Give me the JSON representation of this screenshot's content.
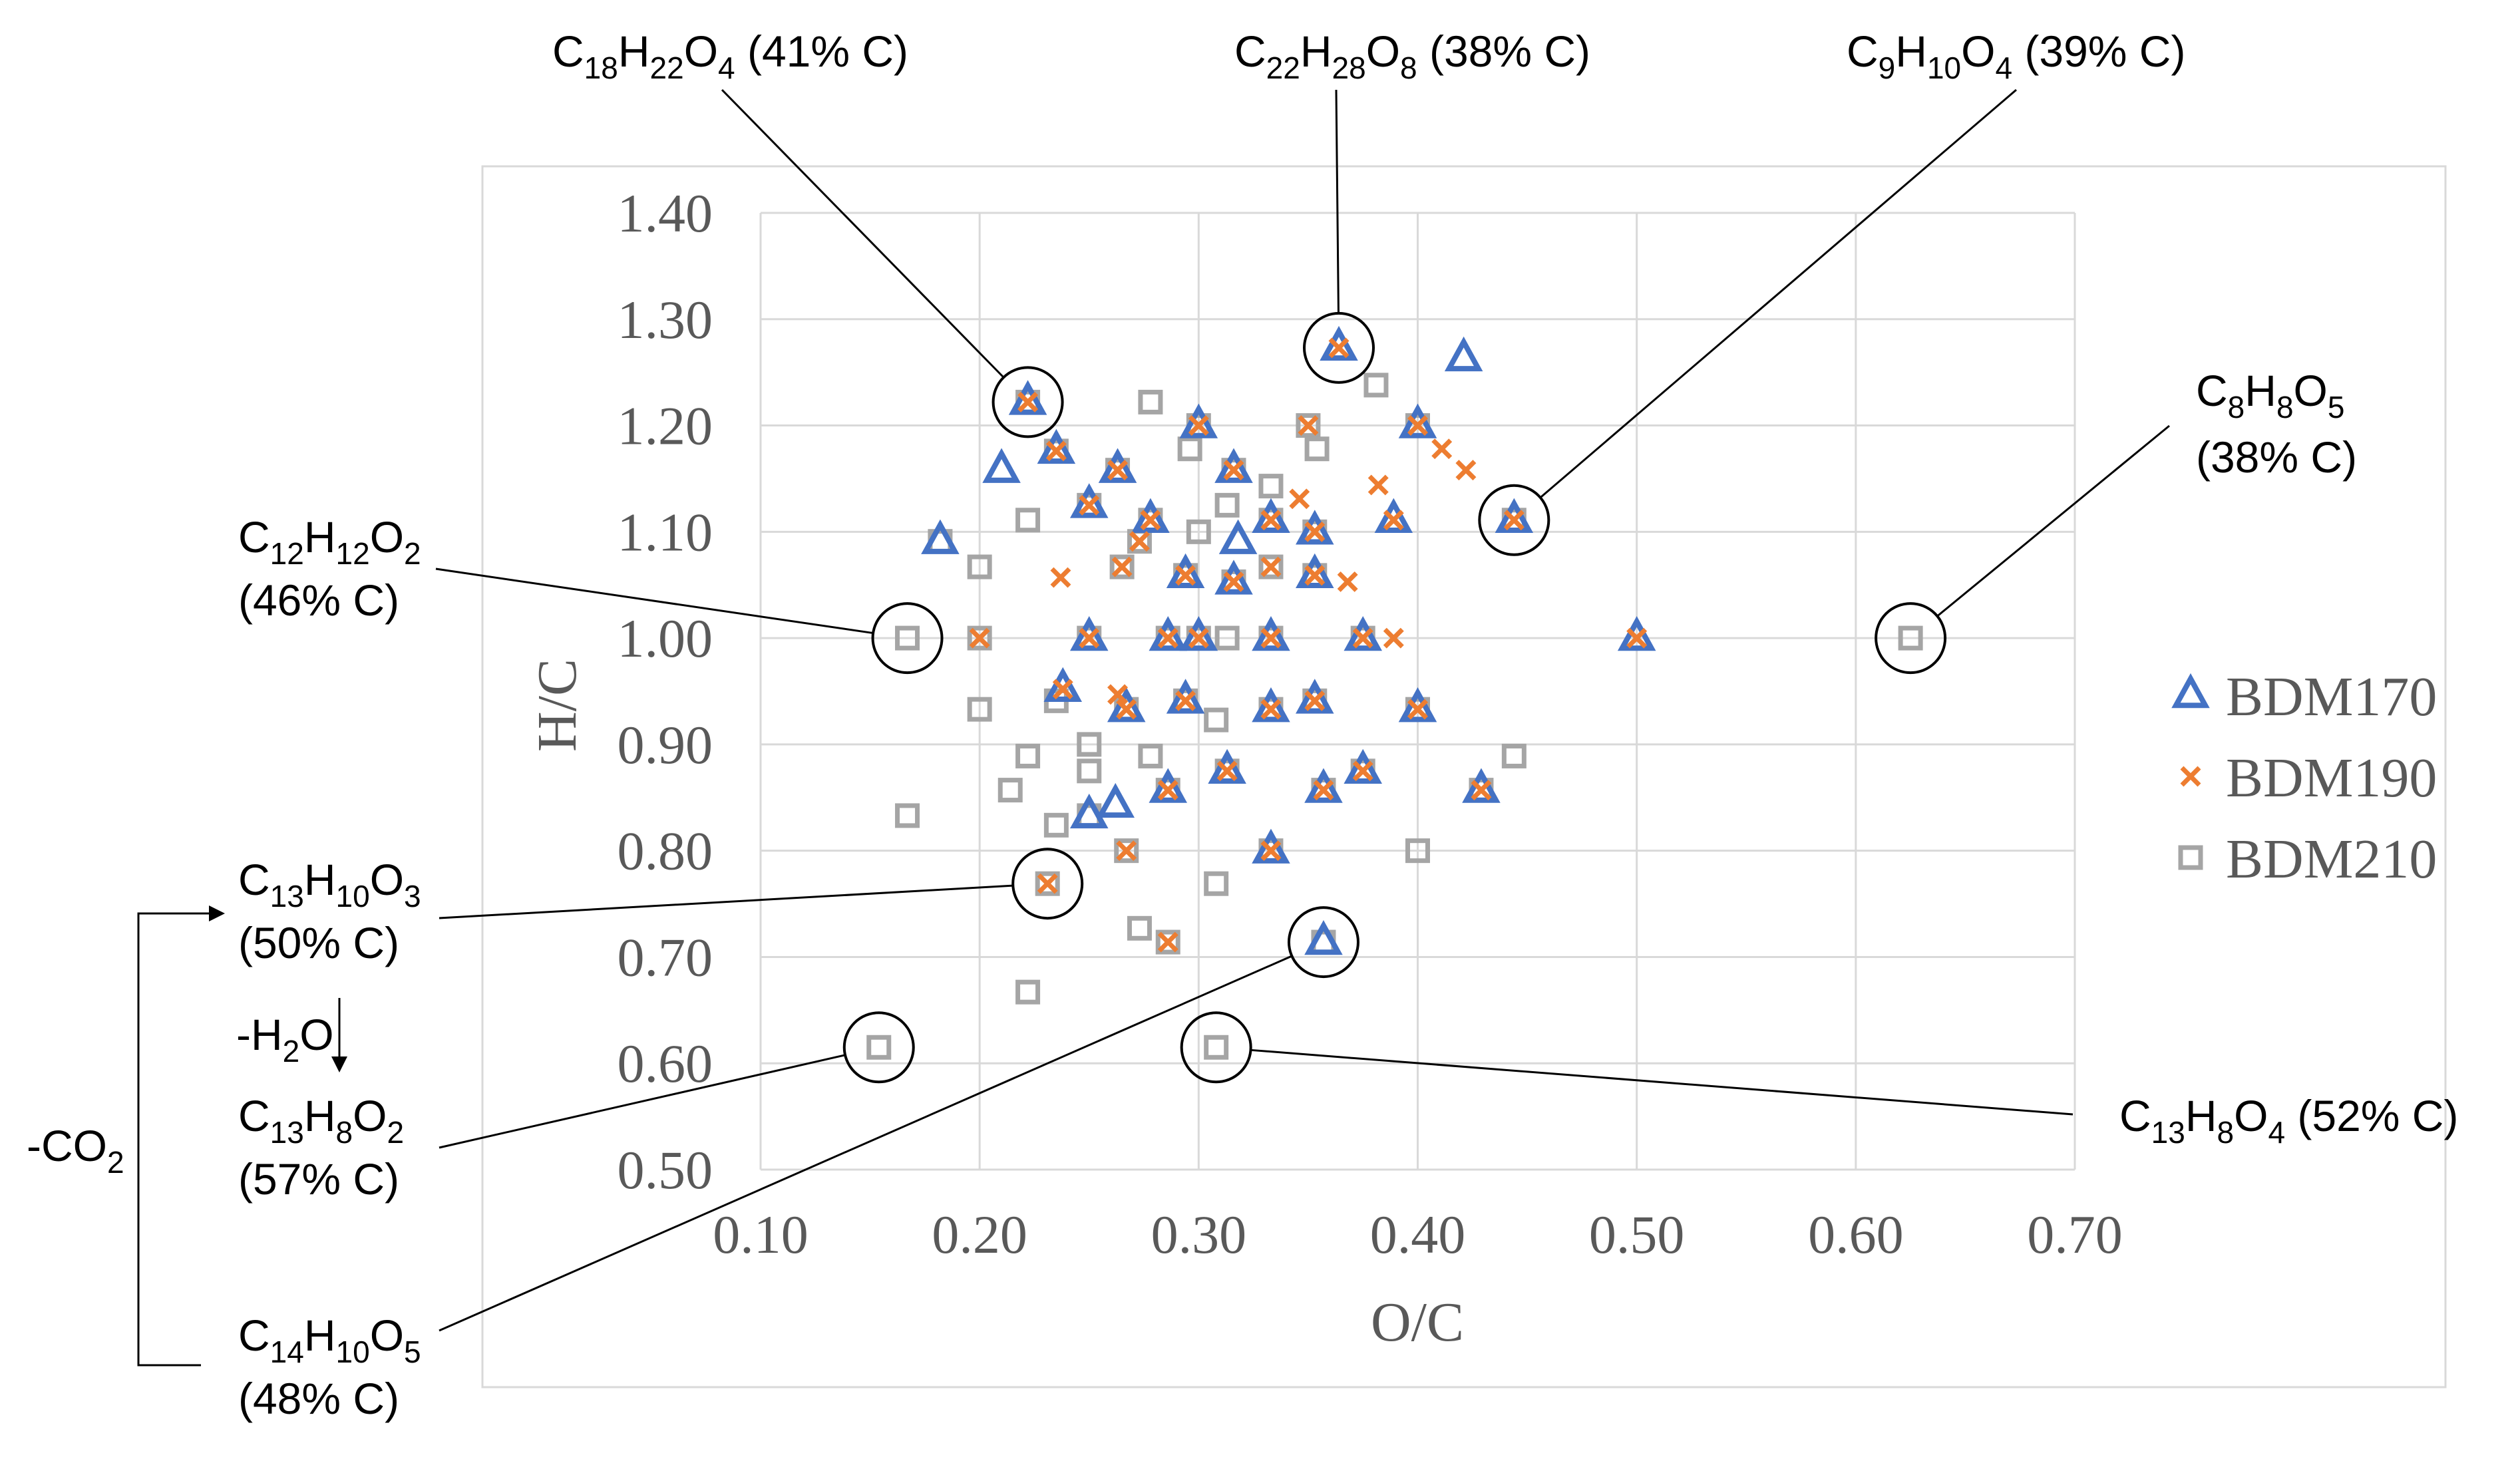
{
  "chart_data": {
    "type": "scatter",
    "title": "",
    "xlabel": "O/C",
    "ylabel": "H/C",
    "xlim": [
      0.1,
      0.7
    ],
    "ylim": [
      0.5,
      1.4
    ],
    "x_ticks": [
      "0.10",
      "0.20",
      "0.30",
      "0.40",
      "0.50",
      "0.60",
      "0.70"
    ],
    "y_ticks": [
      "0.50",
      "0.60",
      "0.70",
      "0.80",
      "0.90",
      "1.00",
      "1.10",
      "1.20",
      "1.30",
      "1.40"
    ],
    "grid": true,
    "legend_position": "right",
    "colors": {
      "BDM170": "#4472C4",
      "BDM190": "#ED7D31",
      "BDM210": "#A5A5A5"
    },
    "series": [
      {
        "name": "BDM170",
        "marker": "triangle",
        "points": [
          [
            0.222,
            1.222
          ],
          [
            0.21,
            1.158
          ],
          [
            0.182,
            1.091
          ],
          [
            0.235,
            1.176
          ],
          [
            0.263,
            1.158
          ],
          [
            0.25,
            1.125
          ],
          [
            0.278,
            1.111
          ],
          [
            0.3,
            1.2
          ],
          [
            0.316,
            1.158
          ],
          [
            0.318,
            1.091
          ],
          [
            0.316,
            1.053
          ],
          [
            0.294,
            1.059
          ],
          [
            0.333,
            1.111
          ],
          [
            0.353,
            1.059
          ],
          [
            0.353,
            1.1
          ],
          [
            0.364,
            1.273
          ],
          [
            0.421,
            1.263
          ],
          [
            0.4,
            1.2
          ],
          [
            0.389,
            1.111
          ],
          [
            0.444,
            1.111
          ],
          [
            0.5,
            1.0
          ],
          [
            0.25,
            1.0
          ],
          [
            0.286,
            1.0
          ],
          [
            0.3,
            1.0
          ],
          [
            0.333,
            1.0
          ],
          [
            0.375,
            1.0
          ],
          [
            0.238,
            0.952
          ],
          [
            0.267,
            0.933
          ],
          [
            0.294,
            0.941
          ],
          [
            0.333,
            0.933
          ],
          [
            0.353,
            0.941
          ],
          [
            0.4,
            0.933
          ],
          [
            0.262,
            0.843
          ],
          [
            0.25,
            0.833
          ],
          [
            0.286,
            0.857
          ],
          [
            0.313,
            0.875
          ],
          [
            0.357,
            0.857
          ],
          [
            0.375,
            0.875
          ],
          [
            0.429,
            0.857
          ],
          [
            0.333,
            0.8
          ],
          [
            0.357,
            0.714
          ]
        ]
      },
      {
        "name": "BDM190",
        "marker": "x",
        "points": [
          [
            0.222,
            1.222
          ],
          [
            0.235,
            1.176
          ],
          [
            0.263,
            1.158
          ],
          [
            0.25,
            1.125
          ],
          [
            0.278,
            1.111
          ],
          [
            0.3,
            1.2
          ],
          [
            0.316,
            1.158
          ],
          [
            0.294,
            1.059
          ],
          [
            0.316,
            1.053
          ],
          [
            0.333,
            1.111
          ],
          [
            0.35,
            1.2
          ],
          [
            0.353,
            1.1
          ],
          [
            0.346,
            1.131
          ],
          [
            0.364,
            1.273
          ],
          [
            0.382,
            1.144
          ],
          [
            0.4,
            1.2
          ],
          [
            0.411,
            1.178
          ],
          [
            0.422,
            1.158
          ],
          [
            0.389,
            1.111
          ],
          [
            0.444,
            1.111
          ],
          [
            0.353,
            1.059
          ],
          [
            0.368,
            1.053
          ],
          [
            0.5,
            1.0
          ],
          [
            0.389,
            1.0
          ],
          [
            0.375,
            1.0
          ],
          [
            0.333,
            1.0
          ],
          [
            0.3,
            1.0
          ],
          [
            0.286,
            1.0
          ],
          [
            0.25,
            1.0
          ],
          [
            0.2,
            1.0
          ],
          [
            0.237,
            1.057
          ],
          [
            0.265,
            1.067
          ],
          [
            0.273,
            1.091
          ],
          [
            0.333,
            1.067
          ],
          [
            0.238,
            0.952
          ],
          [
            0.263,
            0.947
          ],
          [
            0.267,
            0.933
          ],
          [
            0.294,
            0.941
          ],
          [
            0.333,
            0.933
          ],
          [
            0.353,
            0.941
          ],
          [
            0.4,
            0.933
          ],
          [
            0.286,
            0.857
          ],
          [
            0.313,
            0.875
          ],
          [
            0.357,
            0.857
          ],
          [
            0.375,
            0.875
          ],
          [
            0.429,
            0.857
          ],
          [
            0.231,
            0.769
          ],
          [
            0.267,
            0.8
          ],
          [
            0.333,
            0.8
          ],
          [
            0.286,
            0.714
          ]
        ]
      },
      {
        "name": "BDM210",
        "marker": "square",
        "points": [
          [
            0.222,
            1.222
          ],
          [
            0.278,
            1.222
          ],
          [
            0.381,
            1.238
          ],
          [
            0.3,
            1.2
          ],
          [
            0.35,
            1.2
          ],
          [
            0.4,
            1.2
          ],
          [
            0.235,
            1.176
          ],
          [
            0.296,
            1.178
          ],
          [
            0.354,
            1.178
          ],
          [
            0.263,
            1.158
          ],
          [
            0.316,
            1.158
          ],
          [
            0.333,
            1.143
          ],
          [
            0.222,
            1.111
          ],
          [
            0.25,
            1.125
          ],
          [
            0.278,
            1.111
          ],
          [
            0.313,
            1.125
          ],
          [
            0.333,
            1.111
          ],
          [
            0.444,
            1.111
          ],
          [
            0.182,
            1.091
          ],
          [
            0.273,
            1.091
          ],
          [
            0.3,
            1.1
          ],
          [
            0.353,
            1.1
          ],
          [
            0.2,
            1.067
          ],
          [
            0.265,
            1.067
          ],
          [
            0.294,
            1.059
          ],
          [
            0.316,
            1.053
          ],
          [
            0.333,
            1.067
          ],
          [
            0.353,
            1.059
          ],
          [
            0.167,
            1.0
          ],
          [
            0.2,
            1.0
          ],
          [
            0.25,
            1.0
          ],
          [
            0.286,
            1.0
          ],
          [
            0.3,
            1.0
          ],
          [
            0.313,
            1.0
          ],
          [
            0.333,
            1.0
          ],
          [
            0.375,
            1.0
          ],
          [
            0.625,
            1.0
          ],
          [
            0.2,
            0.933
          ],
          [
            0.235,
            0.941
          ],
          [
            0.267,
            0.933
          ],
          [
            0.294,
            0.941
          ],
          [
            0.308,
            0.923
          ],
          [
            0.333,
            0.933
          ],
          [
            0.353,
            0.941
          ],
          [
            0.4,
            0.933
          ],
          [
            0.222,
            0.889
          ],
          [
            0.25,
            0.9
          ],
          [
            0.278,
            0.889
          ],
          [
            0.444,
            0.889
          ],
          [
            0.214,
            0.857
          ],
          [
            0.25,
            0.875
          ],
          [
            0.286,
            0.857
          ],
          [
            0.313,
            0.875
          ],
          [
            0.357,
            0.857
          ],
          [
            0.375,
            0.875
          ],
          [
            0.429,
            0.857
          ],
          [
            0.167,
            0.833
          ],
          [
            0.235,
            0.824
          ],
          [
            0.25,
            0.833
          ],
          [
            0.267,
            0.8
          ],
          [
            0.333,
            0.8
          ],
          [
            0.4,
            0.8
          ],
          [
            0.231,
            0.769
          ],
          [
            0.308,
            0.769
          ],
          [
            0.273,
            0.727
          ],
          [
            0.286,
            0.714
          ],
          [
            0.357,
            0.714
          ],
          [
            0.222,
            0.667
          ],
          [
            0.154,
            0.615
          ],
          [
            0.308,
            0.615
          ]
        ]
      }
    ],
    "annotations": [
      {
        "id": "c18h22o4",
        "formula": [
          [
            "C",
            ""
          ],
          [
            "18",
            "sub"
          ],
          [
            "H",
            ""
          ],
          [
            "22",
            "sub"
          ],
          [
            "O",
            ""
          ],
          [
            "4",
            "sub"
          ],
          [
            " (41% C)",
            ""
          ]
        ],
        "point": [
          0.222,
          1.222
        ]
      },
      {
        "id": "c22h28o8",
        "formula": [
          [
            "C",
            ""
          ],
          [
            "22",
            "sub"
          ],
          [
            "H",
            ""
          ],
          [
            "28",
            "sub"
          ],
          [
            "O",
            ""
          ],
          [
            "8",
            "sub"
          ],
          [
            " (38% C)",
            ""
          ]
        ],
        "point": [
          0.364,
          1.273
        ]
      },
      {
        "id": "c9h10o4",
        "formula": [
          [
            "C",
            ""
          ],
          [
            "9",
            "sub"
          ],
          [
            "H",
            ""
          ],
          [
            "10",
            "sub"
          ],
          [
            "O",
            ""
          ],
          [
            "4",
            "sub"
          ],
          [
            " (39% C)",
            ""
          ]
        ],
        "point": [
          0.444,
          1.111
        ]
      },
      {
        "id": "c8h8o5",
        "formula": [
          [
            "C",
            ""
          ],
          [
            "8",
            "sub"
          ],
          [
            "H",
            ""
          ],
          [
            "8",
            "sub"
          ],
          [
            "O",
            ""
          ],
          [
            "5",
            "sub"
          ]
        ],
        "carbon": "(38% C)",
        "point": [
          0.625,
          1.0
        ]
      },
      {
        "id": "c12h12o2",
        "formula": [
          [
            "C",
            ""
          ],
          [
            "12",
            "sub"
          ],
          [
            "H",
            ""
          ],
          [
            "12",
            "sub"
          ],
          [
            "O",
            ""
          ],
          [
            "2",
            "sub"
          ]
        ],
        "carbon": "(46% C)",
        "point": [
          0.167,
          1.0
        ]
      },
      {
        "id": "c13h10o3",
        "formula": [
          [
            "C",
            ""
          ],
          [
            "13",
            "sub"
          ],
          [
            "H",
            ""
          ],
          [
            "10",
            "sub"
          ],
          [
            "O",
            ""
          ],
          [
            "3",
            "sub"
          ]
        ],
        "carbon": "(50% C)",
        "point": [
          0.231,
          0.769
        ]
      },
      {
        "id": "c13h8o2",
        "formula": [
          [
            "C",
            ""
          ],
          [
            "13",
            "sub"
          ],
          [
            "H",
            ""
          ],
          [
            "8",
            "sub"
          ],
          [
            "O",
            ""
          ],
          [
            "2",
            "sub"
          ]
        ],
        "carbon": "(57% C)",
        "point": [
          0.154,
          0.615
        ]
      },
      {
        "id": "c14h10o5",
        "formula": [
          [
            "C",
            ""
          ],
          [
            "14",
            "sub"
          ],
          [
            "H",
            ""
          ],
          [
            "10",
            "sub"
          ],
          [
            "O",
            ""
          ],
          [
            "5",
            "sub"
          ]
        ],
        "carbon": "(48% C)",
        "point": [
          0.357,
          0.714
        ]
      },
      {
        "id": "c13h8o4",
        "formula": [
          [
            "C",
            ""
          ],
          [
            "13",
            "sub"
          ],
          [
            "H",
            ""
          ],
          [
            "8",
            "sub"
          ],
          [
            "O",
            ""
          ],
          [
            "4",
            "sub"
          ],
          [
            " (52% C)",
            ""
          ]
        ],
        "point": [
          0.308,
          0.615
        ]
      }
    ],
    "reaction_labels": {
      "dehydration": [
        [
          "-H",
          ""
        ],
        [
          "2",
          "sub"
        ],
        [
          "O",
          ""
        ]
      ],
      "decarboxylation": [
        [
          "-CO",
          ""
        ],
        [
          "2",
          "sub"
        ]
      ]
    }
  }
}
